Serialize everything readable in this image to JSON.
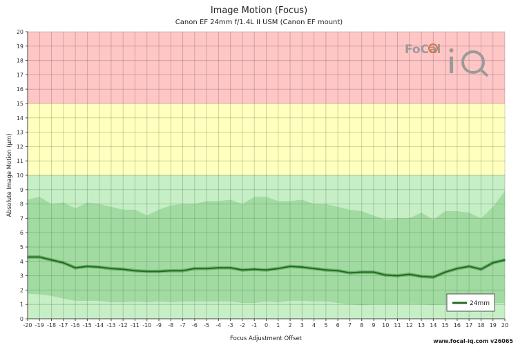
{
  "chart_data": {
    "type": "line",
    "title": "Image Motion (Focus)",
    "subtitle": "Canon EF 24mm f/1.4L II USM (Canon EF mount)",
    "xlabel": "Focus Adjustment Offset",
    "ylabel": "Absolute Image Motion (µm)",
    "xlim": [
      -20,
      20
    ],
    "ylim": [
      0,
      20
    ],
    "x_ticks": [
      -20,
      -19,
      -18,
      -17,
      -16,
      -15,
      -14,
      -13,
      -12,
      -11,
      -10,
      -9,
      -8,
      -7,
      -6,
      -5,
      -4,
      -3,
      -2,
      -1,
      0,
      1,
      2,
      3,
      4,
      5,
      6,
      7,
      8,
      9,
      10,
      11,
      12,
      13,
      14,
      15,
      16,
      17,
      18,
      19,
      20
    ],
    "y_ticks": [
      0,
      1,
      2,
      3,
      4,
      5,
      6,
      7,
      8,
      9,
      10,
      11,
      12,
      13,
      14,
      15,
      16,
      17,
      18,
      19,
      20
    ],
    "zones": [
      {
        "from": 0,
        "to": 10,
        "color": "#c6efc6"
      },
      {
        "from": 10,
        "to": 15,
        "color": "#ffffbe"
      },
      {
        "from": 15,
        "to": 20,
        "color": "#ffc6c6"
      }
    ],
    "grid": true,
    "legend_position": "bottom-right",
    "series": [
      {
        "name": "24mm",
        "color": "#1e6e1e",
        "x": [
          -20,
          -19,
          -18,
          -17,
          -16,
          -15,
          -14,
          -13,
          -12,
          -11,
          -10,
          -9,
          -8,
          -7,
          -6,
          -5,
          -4,
          -3,
          -2,
          -1,
          0,
          1,
          2,
          3,
          4,
          5,
          6,
          7,
          8,
          9,
          10,
          11,
          12,
          13,
          14,
          15,
          16,
          17,
          18,
          19,
          20
        ],
        "values": [
          4.3,
          4.3,
          4.1,
          3.9,
          3.55,
          3.65,
          3.6,
          3.5,
          3.45,
          3.35,
          3.3,
          3.3,
          3.35,
          3.35,
          3.5,
          3.5,
          3.55,
          3.55,
          3.4,
          3.45,
          3.4,
          3.5,
          3.65,
          3.6,
          3.5,
          3.4,
          3.35,
          3.2,
          3.25,
          3.25,
          3.05,
          3.0,
          3.1,
          2.95,
          2.9,
          3.25,
          3.5,
          3.65,
          3.45,
          3.9,
          4.1
        ],
        "band_upper": [
          8.3,
          8.5,
          8.0,
          8.1,
          7.7,
          8.1,
          8.0,
          7.8,
          7.6,
          7.6,
          7.2,
          7.6,
          7.9,
          8.0,
          8.0,
          8.2,
          8.2,
          8.3,
          8.0,
          8.5,
          8.5,
          8.2,
          8.2,
          8.3,
          8.0,
          8.0,
          7.8,
          7.6,
          7.5,
          7.2,
          6.9,
          7.0,
          7.0,
          7.4,
          6.9,
          7.5,
          7.5,
          7.4,
          7.0,
          7.8,
          8.9
        ],
        "band_lower": [
          1.75,
          1.7,
          1.6,
          1.4,
          1.25,
          1.25,
          1.25,
          1.15,
          1.15,
          1.2,
          1.15,
          1.2,
          1.15,
          1.2,
          1.2,
          1.2,
          1.2,
          1.2,
          1.1,
          1.1,
          1.2,
          1.15,
          1.25,
          1.25,
          1.2,
          1.2,
          1.1,
          1.0,
          0.95,
          1.0,
          1.0,
          1.0,
          1.05,
          1.0,
          0.95,
          1.0,
          1.05,
          1.05,
          1.05,
          1.1,
          1.1
        ]
      }
    ]
  },
  "logo": {
    "text": "FoCal",
    "mark": "iQ"
  },
  "footer": {
    "text": "www.focal-iq.com  v26065"
  }
}
